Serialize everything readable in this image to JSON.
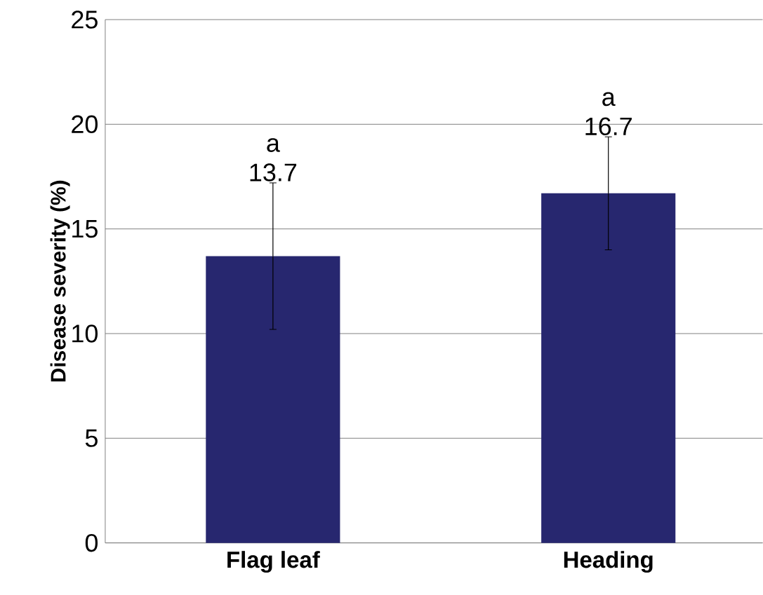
{
  "chart_data": {
    "type": "bar",
    "ylabel": "Disease severity (%)",
    "categories": [
      "Flag leaf",
      "Heading"
    ],
    "values": [
      13.7,
      16.7
    ],
    "errors": [
      3.5,
      2.7
    ],
    "color": "#27276f",
    "data_labels": true,
    "ylim": [
      0,
      25
    ],
    "yticks": [
      0,
      5,
      10,
      15,
      20,
      25
    ],
    "grid": "y",
    "annotations": [
      "a",
      "a"
    ]
  }
}
